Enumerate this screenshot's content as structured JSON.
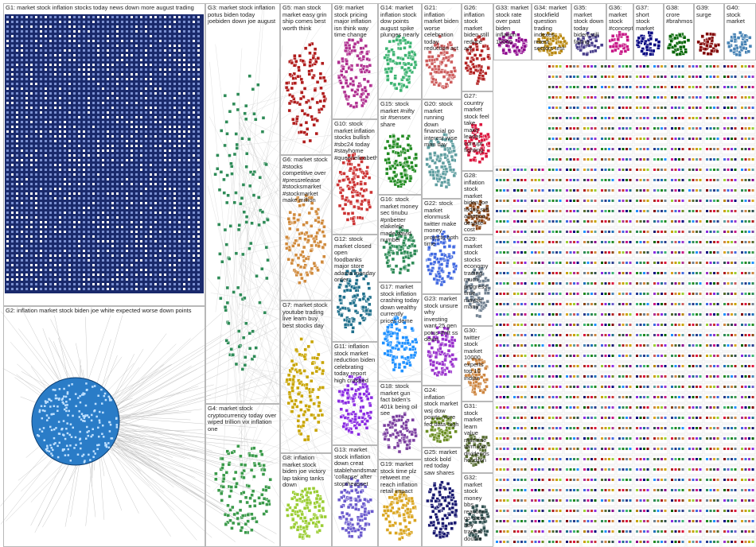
{
  "groups": [
    {
      "label": "G1: market stock inflation stocks today news down more august trading"
    },
    {
      "label": "G2: inflation market stock biden joe white expected worse down points"
    },
    {
      "label": "G3: market stock inflation potus biden today joebiden down joe august"
    },
    {
      "label": "G4: market stock cryptocurrency today over wiped trillion vix inflation one"
    },
    {
      "label": "G5: man stock market easy grin ship comes best worth think"
    },
    {
      "label": "G6: market stock #stocks competitive over #pressrelease #stocksmarket #stockmarket make million"
    },
    {
      "label": "G7: market stock youtube trading live learn buy best stocks day"
    },
    {
      "label": "G8: inflation market stock biden joe victory lap taking tanks down"
    },
    {
      "label": "G9: market stock pricing major inflation isn think way time change"
    },
    {
      "label": "G10: stock market inflation stocks bullish #sbc24 today #stayhome #queenelizabeth"
    },
    {
      "label": "G11: inflation stock market reduction biden celebrating today report high crashed"
    },
    {
      "label": "G12: stock market closed open foodbanks major store adama monday order"
    },
    {
      "label": "G13: market stock inflation down creat stablehandsman 'collapse' after stoptheasset"
    },
    {
      "label": "G14: market inflation stock dow points august spike plunges nearly"
    },
    {
      "label": "G15: stock market #nifty sir #sensex share"
    },
    {
      "label": "G16: stock market money sec tinubu #pnbetter elakelele made david number"
    },
    {
      "label": "G17: market stock inflation crashing today down wealthy currently prices deme"
    },
    {
      "label": "G18: stock market gun fact biden's 401k being oil see"
    },
    {
      "label": "G19: market stock time plz retweet me reach inflation retail impact"
    },
    {
      "label": "G20: stock market running down financial go interest wise man day"
    },
    {
      "label": "G21: inflation market biden worse celebration today reduction act"
    },
    {
      "label": "G22: stock market elonmusk twitter make money projects both time"
    },
    {
      "label": "G23: market stock unsure why investing want 25 gen potus #nft ss down"
    },
    {
      "label": "G24: inflation stock market wsj dow points more fed data high"
    },
    {
      "label": "G25: market stock bold red today saw shares"
    },
    {
      "label": "G26: inflation stock market biden still reduce act"
    },
    {
      "label": "G27: country market stock feel take make leader corrupt fighting"
    },
    {
      "label": "G28: inflation stock market biden joe today still america despite cost"
    },
    {
      "label": "G29: market stock stocks economy trading much progress time maybe many"
    },
    {
      "label": "G30: twitter stock market 10000 experts top 10 indian"
    },
    {
      "label": "G31: stock market learn value machine term join dividends hocdijon"
    },
    {
      "label": "G32: market stock money bbs reaction go more hey traders double"
    },
    {
      "label": "G33: market stock rate over past biden inflation 10000"
    },
    {
      "label": "G34: market stockfield question trading indexes retest sectors test"
    },
    {
      "label": "G35: market stock down today biden still falling"
    },
    {
      "label": "G36: market stock #concept"
    },
    {
      "label": "G37: short stock market"
    },
    {
      "label": "G38: crore #brahmos"
    },
    {
      "label": "G39: surge"
    },
    {
      "label": "G40: stock market"
    }
  ]
}
